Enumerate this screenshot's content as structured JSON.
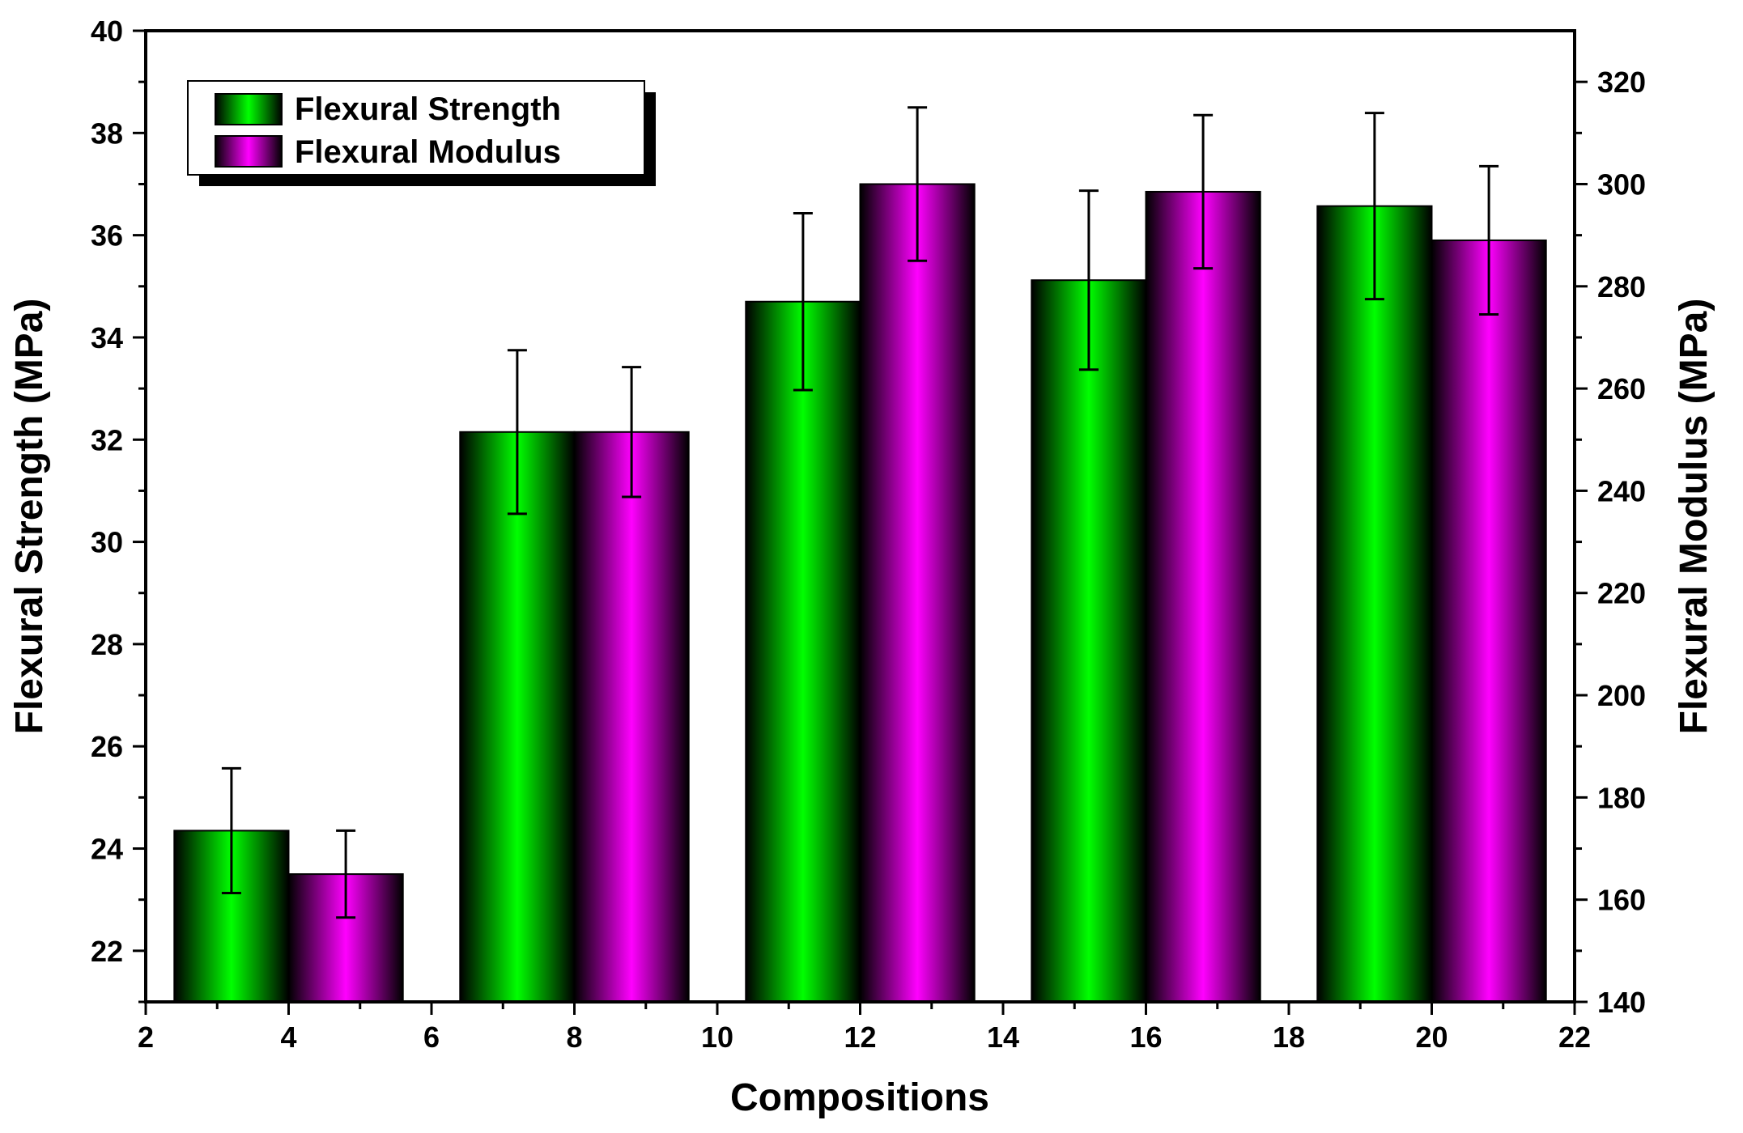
{
  "chart_data": {
    "type": "bar",
    "xlabel": "Compositions",
    "ylabel_left": "Flexural Strength (MPa)",
    "ylabel_right": "Flexural Modulus (MPa)",
    "x_range": [
      2,
      22
    ],
    "x_ticks": [
      "2",
      "4",
      "6",
      "8",
      "10",
      "12",
      "14",
      "16",
      "18",
      "20",
      "22"
    ],
    "y_left_range": [
      21,
      40
    ],
    "y_left_ticks": [
      "22",
      "24",
      "26",
      "28",
      "30",
      "32",
      "34",
      "36",
      "38",
      "40"
    ],
    "y_right_range": [
      140,
      330
    ],
    "y_right_ticks": [
      "140",
      "160",
      "180",
      "200",
      "220",
      "240",
      "260",
      "280",
      "300",
      "320"
    ],
    "groups_x": [
      4,
      8,
      12,
      16,
      20
    ],
    "series": [
      {
        "name": "Flexural Strength",
        "axis": "left",
        "color": "#00ff00",
        "values": [
          24.35,
          32.15,
          34.7,
          35.12,
          36.57
        ],
        "errors": [
          1.22,
          1.6,
          1.73,
          1.75,
          1.82
        ]
      },
      {
        "name": "Flexural Modulus",
        "axis": "right",
        "color": "#ff00ff",
        "values": [
          165,
          251.5,
          300,
          298.5,
          289
        ],
        "errors": [
          8.5,
          12.7,
          15,
          15,
          14.5
        ]
      }
    ],
    "legend": {
      "position": "top-left",
      "items": [
        "Flexural Strength",
        "Flexural Modulus"
      ]
    }
  }
}
